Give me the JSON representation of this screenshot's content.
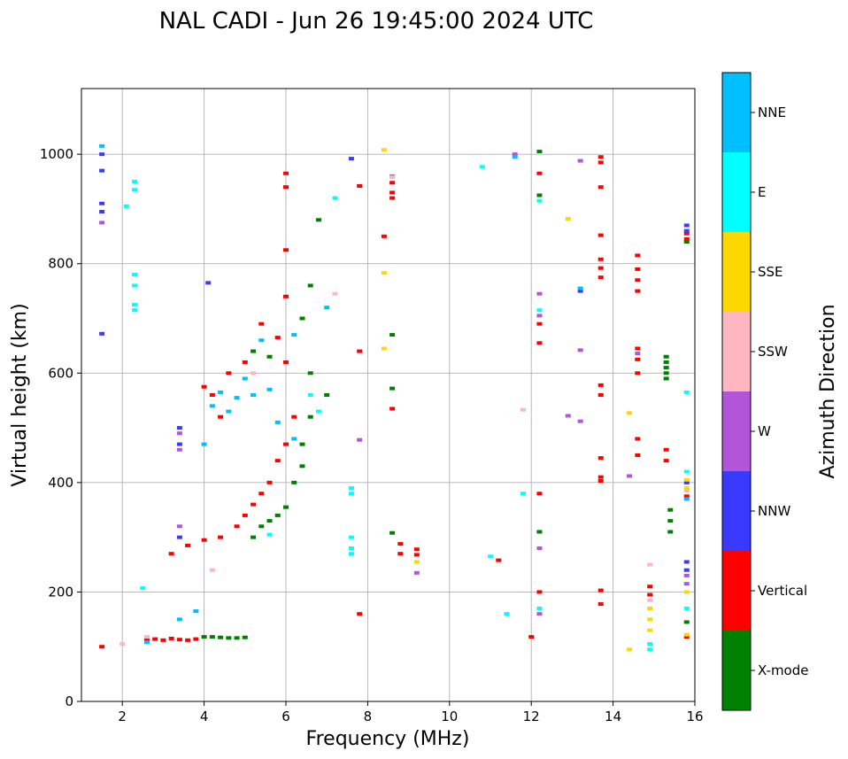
{
  "chart_data": {
    "type": "scatter",
    "title": "NAL CADI - Jun 26 19:45:00 2024 UTC",
    "xlabel": "Frequency (MHz)",
    "ylabel": "Virtual height (km)",
    "xlim": [
      1,
      16
    ],
    "ylim": [
      0,
      1120
    ],
    "xticks": [
      2,
      4,
      6,
      8,
      10,
      12,
      14,
      16
    ],
    "yticks": [
      0,
      200,
      400,
      600,
      800,
      1000
    ],
    "grid": true,
    "colorbar": {
      "label": "Azimuth Direction",
      "categories": [
        {
          "name": "X-mode",
          "color": "#008000"
        },
        {
          "name": "Vertical",
          "color": "#ff0000"
        },
        {
          "name": "NNW",
          "color": "#3a3aff"
        },
        {
          "name": "W",
          "color": "#b355d8"
        },
        {
          "name": "SSW",
          "color": "#ffb6c1"
        },
        {
          "name": "SSE",
          "color": "#ffd700"
        },
        {
          "name": "E",
          "color": "#00ffff"
        },
        {
          "name": "NNE",
          "color": "#00bfff"
        }
      ]
    },
    "series": [
      {
        "name": "X-mode",
        "points": [
          [
            4.0,
            118
          ],
          [
            4.2,
            118
          ],
          [
            4.4,
            117
          ],
          [
            4.6,
            116
          ],
          [
            4.8,
            116
          ],
          [
            5.0,
            117
          ],
          [
            5.2,
            300
          ],
          [
            5.4,
            320
          ],
          [
            5.6,
            330
          ],
          [
            5.8,
            340
          ],
          [
            6.0,
            355
          ],
          [
            6.2,
            400
          ],
          [
            6.4,
            430
          ],
          [
            6.4,
            470
          ],
          [
            6.6,
            520
          ],
          [
            6.6,
            600
          ],
          [
            6.4,
            700
          ],
          [
            6.6,
            760
          ],
          [
            6.8,
            880
          ],
          [
            5.6,
            630
          ],
          [
            5.2,
            640
          ],
          [
            7.0,
            560
          ],
          [
            8.6,
            670
          ],
          [
            8.6,
            572
          ],
          [
            8.6,
            308
          ],
          [
            12.2,
            1005
          ],
          [
            12.2,
            925
          ],
          [
            12.2,
            310
          ],
          [
            15.3,
            630
          ],
          [
            15.3,
            620
          ],
          [
            15.3,
            610
          ],
          [
            15.3,
            600
          ],
          [
            15.3,
            590
          ],
          [
            15.4,
            350
          ],
          [
            15.4,
            330
          ],
          [
            15.4,
            310
          ],
          [
            15.8,
            840
          ],
          [
            15.8,
            145
          ]
        ]
      },
      {
        "name": "Vertical",
        "points": [
          [
            1.5,
            100
          ],
          [
            2.6,
            112
          ],
          [
            2.8,
            114
          ],
          [
            3.0,
            112
          ],
          [
            3.2,
            115
          ],
          [
            3.4,
            113
          ],
          [
            3.6,
            112
          ],
          [
            3.8,
            114
          ],
          [
            3.2,
            270
          ],
          [
            3.6,
            285
          ],
          [
            4.0,
            295
          ],
          [
            4.4,
            300
          ],
          [
            4.8,
            320
          ],
          [
            5.0,
            340
          ],
          [
            5.2,
            360
          ],
          [
            5.4,
            380
          ],
          [
            5.6,
            400
          ],
          [
            5.8,
            440
          ],
          [
            6.0,
            470
          ],
          [
            6.2,
            520
          ],
          [
            6.0,
            620
          ],
          [
            5.8,
            665
          ],
          [
            5.4,
            690
          ],
          [
            5.0,
            620
          ],
          [
            4.6,
            600
          ],
          [
            4.2,
            560
          ],
          [
            4.0,
            575
          ],
          [
            4.4,
            520
          ],
          [
            6.0,
            965
          ],
          [
            6.0,
            940
          ],
          [
            6.0,
            825
          ],
          [
            6.0,
            740
          ],
          [
            7.8,
            942
          ],
          [
            7.8,
            640
          ],
          [
            7.8,
            160
          ],
          [
            8.4,
            850
          ],
          [
            8.6,
            948
          ],
          [
            8.6,
            930
          ],
          [
            8.6,
            920
          ],
          [
            8.6,
            535
          ],
          [
            8.8,
            288
          ],
          [
            8.8,
            270
          ],
          [
            9.2,
            278
          ],
          [
            9.2,
            268
          ],
          [
            11.2,
            258
          ],
          [
            12.2,
            965
          ],
          [
            12.2,
            690
          ],
          [
            12.2,
            655
          ],
          [
            12.2,
            380
          ],
          [
            12.2,
            200
          ],
          [
            12.0,
            118
          ],
          [
            13.7,
            995
          ],
          [
            13.7,
            985
          ],
          [
            13.7,
            940
          ],
          [
            13.7,
            852
          ],
          [
            13.7,
            808
          ],
          [
            13.7,
            792
          ],
          [
            13.7,
            775
          ],
          [
            13.7,
            578
          ],
          [
            13.7,
            560
          ],
          [
            13.7,
            445
          ],
          [
            13.7,
            410
          ],
          [
            13.7,
            403
          ],
          [
            13.7,
            203
          ],
          [
            13.7,
            178
          ],
          [
            14.6,
            815
          ],
          [
            14.6,
            790
          ],
          [
            14.6,
            770
          ],
          [
            14.6,
            750
          ],
          [
            14.6,
            645
          ],
          [
            14.6,
            625
          ],
          [
            14.6,
            600
          ],
          [
            14.6,
            480
          ],
          [
            14.6,
            450
          ],
          [
            15.3,
            460
          ],
          [
            15.3,
            440
          ],
          [
            15.8,
            855
          ],
          [
            15.8,
            845
          ],
          [
            15.8,
            375
          ],
          [
            15.8,
            118
          ],
          [
            14.9,
            210
          ],
          [
            14.9,
            195
          ]
        ]
      },
      {
        "name": "NNW",
        "points": [
          [
            1.5,
            1000
          ],
          [
            1.5,
            970
          ],
          [
            1.5,
            910
          ],
          [
            1.5,
            895
          ],
          [
            1.5,
            672
          ],
          [
            3.4,
            500
          ],
          [
            3.4,
            470
          ],
          [
            3.4,
            300
          ],
          [
            4.1,
            765
          ],
          [
            7.6,
            992
          ],
          [
            13.2,
            750
          ],
          [
            15.8,
            870
          ],
          [
            15.8,
            860
          ],
          [
            15.8,
            400
          ],
          [
            15.8,
            255
          ],
          [
            15.8,
            240
          ]
        ]
      },
      {
        "name": "W",
        "points": [
          [
            1.5,
            875
          ],
          [
            3.4,
            490
          ],
          [
            3.4,
            460
          ],
          [
            3.4,
            320
          ],
          [
            7.8,
            478
          ],
          [
            8.6,
            960
          ],
          [
            9.2,
            235
          ],
          [
            11.6,
            1000
          ],
          [
            12.2,
            745
          ],
          [
            12.2,
            705
          ],
          [
            12.2,
            280
          ],
          [
            12.2,
            160
          ],
          [
            13.2,
            988
          ],
          [
            13.2,
            642
          ],
          [
            12.9,
            522
          ],
          [
            13.2,
            512
          ],
          [
            14.4,
            412
          ],
          [
            14.6,
            636
          ],
          [
            15.8,
            230
          ],
          [
            15.8,
            215
          ]
        ]
      },
      {
        "name": "SSW",
        "points": [
          [
            2.0,
            105
          ],
          [
            2.6,
            118
          ],
          [
            4.2,
            240
          ],
          [
            5.2,
            600
          ],
          [
            7.2,
            745
          ],
          [
            8.6,
            958
          ],
          [
            11.8,
            533
          ],
          [
            14.9,
            250
          ],
          [
            14.9,
            185
          ],
          [
            15.8,
            385
          ]
        ]
      },
      {
        "name": "SSE",
        "points": [
          [
            8.4,
            1008
          ],
          [
            8.4,
            783
          ],
          [
            8.4,
            645
          ],
          [
            9.2,
            255
          ],
          [
            12.9,
            882
          ],
          [
            14.4,
            527
          ],
          [
            14.4,
            95
          ],
          [
            14.9,
            170
          ],
          [
            14.9,
            150
          ],
          [
            14.9,
            130
          ],
          [
            15.8,
            405
          ],
          [
            15.8,
            390
          ],
          [
            15.8,
            200
          ],
          [
            15.8,
            122
          ]
        ]
      },
      {
        "name": "E",
        "points": [
          [
            2.3,
            950
          ],
          [
            2.3,
            935
          ],
          [
            2.1,
            905
          ],
          [
            2.3,
            780
          ],
          [
            2.3,
            760
          ],
          [
            2.3,
            725
          ],
          [
            2.3,
            715
          ],
          [
            2.5,
            207
          ],
          [
            5.6,
            305
          ],
          [
            6.6,
            560
          ],
          [
            6.8,
            530
          ],
          [
            7.2,
            920
          ],
          [
            7.6,
            390
          ],
          [
            7.6,
            380
          ],
          [
            7.6,
            300
          ],
          [
            7.6,
            280
          ],
          [
            7.6,
            270
          ],
          [
            10.8,
            977
          ],
          [
            11.0,
            265
          ],
          [
            11.4,
            160
          ],
          [
            11.8,
            380
          ],
          [
            12.2,
            915
          ],
          [
            12.2,
            715
          ],
          [
            12.2,
            170
          ],
          [
            14.9,
            105
          ],
          [
            14.9,
            95
          ],
          [
            15.8,
            565
          ],
          [
            15.8,
            420
          ],
          [
            15.8,
            170
          ]
        ]
      },
      {
        "name": "NNE",
        "points": [
          [
            1.5,
            1015
          ],
          [
            2.6,
            108
          ],
          [
            3.4,
            150
          ],
          [
            3.8,
            165
          ],
          [
            4.0,
            470
          ],
          [
            4.2,
            540
          ],
          [
            4.4,
            565
          ],
          [
            4.6,
            530
          ],
          [
            4.8,
            555
          ],
          [
            5.0,
            590
          ],
          [
            5.2,
            560
          ],
          [
            5.4,
            660
          ],
          [
            5.6,
            570
          ],
          [
            5.8,
            510
          ],
          [
            6.2,
            480
          ],
          [
            6.2,
            670
          ],
          [
            7.0,
            720
          ],
          [
            11.6,
            995
          ],
          [
            13.2,
            755
          ],
          [
            15.8,
            370
          ]
        ]
      }
    ]
  }
}
